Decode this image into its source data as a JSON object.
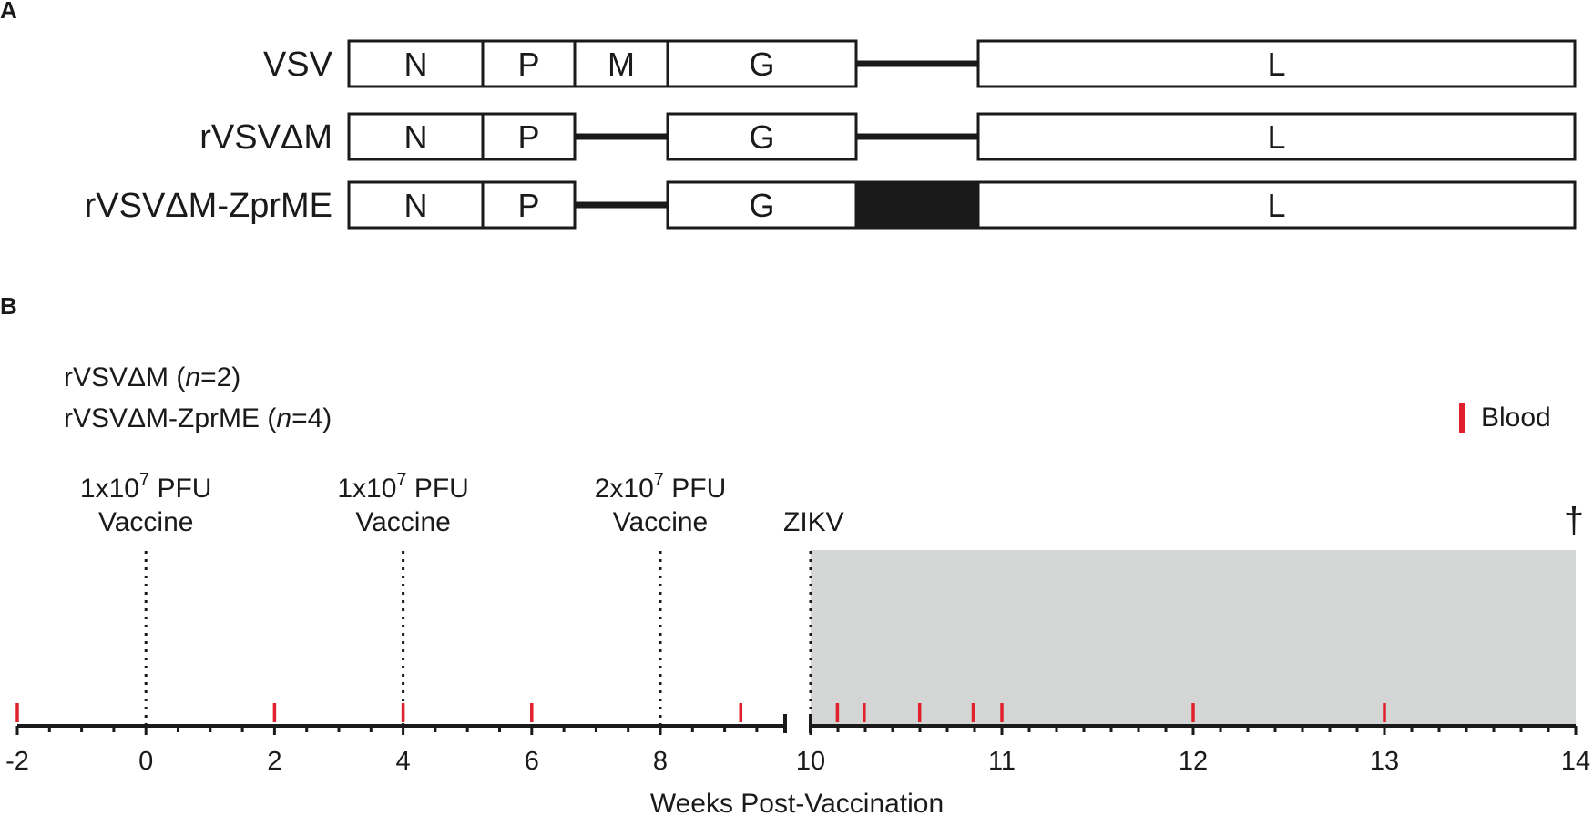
{
  "panel_a": {
    "letter": "A",
    "constructs": [
      {
        "name": "VSV",
        "segments": [
          "N",
          "P",
          "M",
          "G",
          "",
          "L"
        ]
      },
      {
        "name": "rVSVΔM",
        "segments": [
          "N",
          "P",
          "",
          "G",
          "",
          "L"
        ]
      },
      {
        "name": "rVSVΔM-ZprME",
        "segments": [
          "N",
          "P",
          "",
          "G",
          "ZprME",
          "L"
        ]
      }
    ]
  },
  "panel_b": {
    "letter": "B",
    "groups": [
      {
        "name": "rVSVΔM",
        "n_label": "n",
        "n_value": "=2"
      },
      {
        "name": "rVSVΔM-ZprME",
        "n_label": "n",
        "n_value": "=4"
      }
    ],
    "legend": {
      "label": "Blood",
      "color": "#e0202a"
    },
    "vaccinations": [
      {
        "week": 0,
        "dose_prefix": "1x10",
        "dose_exp": "7",
        "dose_unit": " PFU",
        "label": "Vaccine"
      },
      {
        "week": 4,
        "dose_prefix": "1x10",
        "dose_exp": "7",
        "dose_unit": " PFU",
        "label": "Vaccine"
      },
      {
        "week": 8,
        "dose_prefix": "2x10",
        "dose_exp": "7",
        "dose_unit": " PFU",
        "label": "Vaccine"
      }
    ],
    "challenge": {
      "week": 10,
      "label": "ZIKV"
    },
    "endpoint": {
      "week": 14,
      "symbol": "†"
    },
    "blood_draw_weeks": [
      -2,
      2,
      4,
      6,
      9.25,
      10.14,
      10.28,
      10.57,
      10.85,
      11,
      12,
      13
    ],
    "axis": {
      "title": "Weeks Post-Vaccination",
      "tick_labels": [
        "-2",
        "0",
        "2",
        "4",
        "6",
        "8",
        "10",
        "11",
        "12",
        "13",
        "14"
      ],
      "segment_1_range": [
        -2,
        10
      ],
      "segment_2_range": [
        10,
        14
      ]
    },
    "colors": {
      "shade": "#d4d6d5",
      "axis": "#1a1a1a"
    }
  }
}
